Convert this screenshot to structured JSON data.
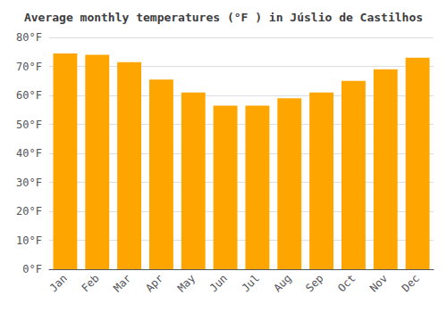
{
  "chart_data": {
    "type": "bar",
    "title": "Average monthly temperatures (°F ) in Júslio de Castilhos",
    "categories": [
      "Jan",
      "Feb",
      "Mar",
      "Apr",
      "May",
      "Jun",
      "Jul",
      "Aug",
      "Sep",
      "Oct",
      "Nov",
      "Dec"
    ],
    "values": [
      74.5,
      74.0,
      71.5,
      65.5,
      61.0,
      56.5,
      56.5,
      59.0,
      61.0,
      65.0,
      69.0,
      73.0
    ],
    "color": "#FFA500",
    "ylim": [
      0,
      80
    ],
    "yticks": [
      {
        "value": 0,
        "label": "0°F"
      },
      {
        "value": 10,
        "label": "10°F"
      },
      {
        "value": 20,
        "label": "20°F"
      },
      {
        "value": 30,
        "label": "30°F"
      },
      {
        "value": 40,
        "label": "40°F"
      },
      {
        "value": 50,
        "label": "50°F"
      },
      {
        "value": 60,
        "label": "60°F"
      },
      {
        "value": 70,
        "label": "70°F"
      },
      {
        "value": 80,
        "label": "80°F"
      }
    ],
    "grid": true
  }
}
